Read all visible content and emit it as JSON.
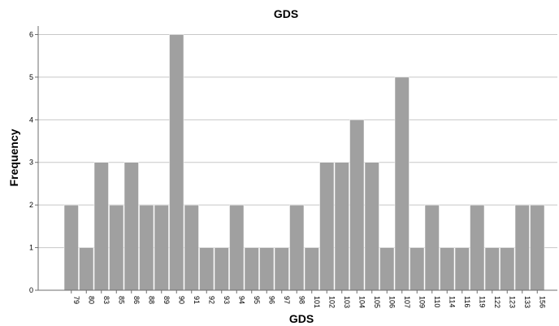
{
  "chart_data": {
    "type": "bar",
    "title": "GDS",
    "xlabel": "GDS",
    "ylabel": "Frequency",
    "categories": [
      "79",
      "80",
      "83",
      "85",
      "86",
      "88",
      "89",
      "90",
      "91",
      "92",
      "93",
      "94",
      "95",
      "96",
      "97",
      "98",
      "101",
      "102",
      "103",
      "104",
      "105",
      "106",
      "107",
      "109",
      "110",
      "114",
      "116",
      "119",
      "122",
      "123",
      "133",
      "156"
    ],
    "values": [
      2,
      1,
      3,
      2,
      3,
      2,
      2,
      6,
      2,
      1,
      1,
      2,
      1,
      1,
      1,
      2,
      1,
      3,
      3,
      4,
      3,
      1,
      5,
      1,
      2,
      1,
      1,
      2,
      1,
      1,
      2,
      2
    ],
    "ylim": [
      0,
      6.2
    ],
    "yticks": [
      "0",
      "1",
      "2",
      "3",
      "4",
      "5",
      "6"
    ],
    "grid": true,
    "bar_color": "#a0a0a0",
    "grid_color": "#c8c8c8",
    "axis_color": "#6e6e6e"
  }
}
